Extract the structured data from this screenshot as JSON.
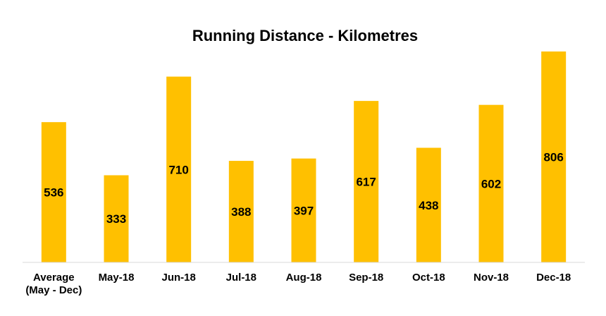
{
  "chart_data": {
    "type": "bar",
    "title": "Running Distance - Kilometres",
    "xlabel": "",
    "ylabel": "",
    "categories": [
      [
        "Average",
        "(May - Dec)"
      ],
      [
        "May-18"
      ],
      [
        "Jun-18"
      ],
      [
        "Jul-18"
      ],
      [
        "Aug-18"
      ],
      [
        "Sep-18"
      ],
      [
        "Oct-18"
      ],
      [
        "Nov-18"
      ],
      [
        "Dec-18"
      ]
    ],
    "values": [
      536,
      333,
      710,
      388,
      397,
      617,
      438,
      602,
      806
    ],
    "ylim": [
      0,
      806
    ],
    "grid": false,
    "legend": "none",
    "data_labels": "center",
    "colors": {
      "bar": "#FFC000",
      "axis": "#D9D9D9",
      "text": "#000000"
    }
  }
}
